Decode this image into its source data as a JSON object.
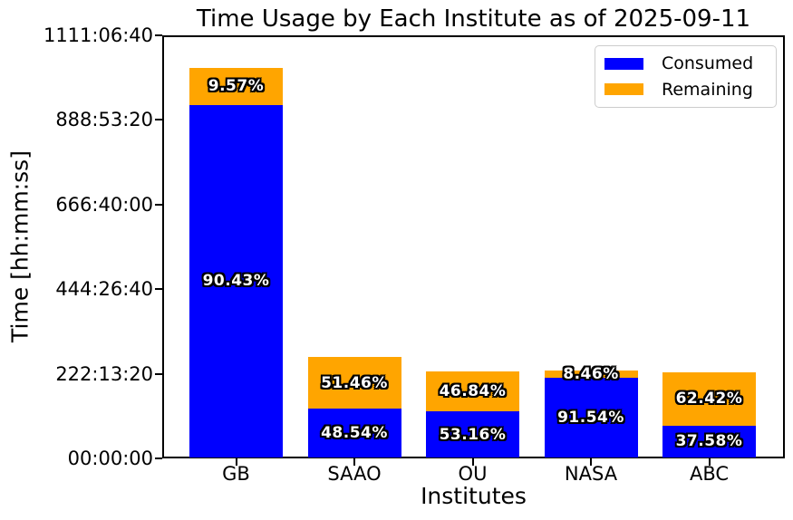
{
  "chart_data": {
    "type": "bar",
    "stacked": true,
    "title": "Time Usage by Each Institute as of 2025-09-11",
    "xlabel": "Institutes",
    "ylabel": "Time [hh:mm:ss]",
    "categories": [
      "GB",
      "SAAO",
      "OU",
      "NASA",
      "ABC"
    ],
    "series": [
      {
        "name": "Consumed",
        "color": "#0000ff",
        "percent_values": [
          90.43,
          48.54,
          53.16,
          91.54,
          37.58
        ],
        "percent_labels": [
          "90.43%",
          "48.54%",
          "53.16%",
          "91.54%",
          "37.58%"
        ]
      },
      {
        "name": "Remaining",
        "color": "#ffa500",
        "percent_values": [
          9.57,
          51.46,
          46.84,
          8.46,
          62.42
        ],
        "percent_labels": [
          "9.57%",
          "51.46%",
          "46.84%",
          "8.46%",
          "62.42%"
        ]
      }
    ],
    "bar_totals_seconds_est": [
      3687000,
      951000,
      814000,
      822000,
      805000
    ],
    "ylim_seconds": [
      0,
      4000000
    ],
    "y_ticks": [
      {
        "seconds": 0,
        "label": "00:00:00"
      },
      {
        "seconds": 800000,
        "label": "222:13:20"
      },
      {
        "seconds": 1600000,
        "label": "444:26:40"
      },
      {
        "seconds": 2400000,
        "label": "666:40:00"
      },
      {
        "seconds": 3200000,
        "label": "888:53:20"
      },
      {
        "seconds": 4000000,
        "label": "1111:06:40"
      }
    ],
    "grid": false,
    "legend": {
      "position": "upper right",
      "entries": [
        {
          "label": "Consumed",
          "color": "#0000ff"
        },
        {
          "label": "Remaining",
          "color": "#ffa500"
        }
      ]
    },
    "bar_label_style": {
      "color": "#ffffff",
      "outline": "#000000"
    }
  }
}
